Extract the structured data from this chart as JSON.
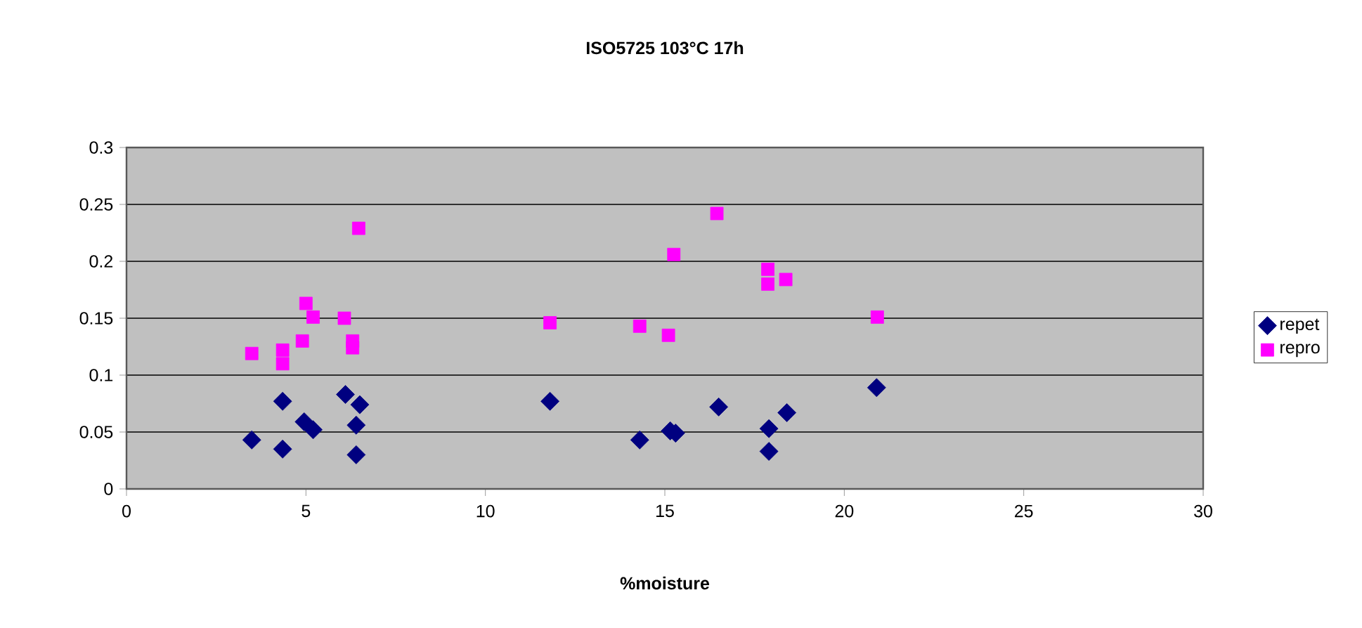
{
  "chart_data": {
    "type": "scatter",
    "title": "ISO5725 103°C 17h",
    "xlabel": "%moisture",
    "xlim": [
      0,
      30
    ],
    "xticks": [
      0,
      5,
      10,
      15,
      20,
      25,
      30
    ],
    "ylim": [
      0,
      0.3
    ],
    "yticks": [
      0,
      0.05,
      0.1,
      0.15,
      0.2,
      0.25,
      0.3
    ],
    "grid": "y",
    "legend": "right",
    "series": [
      {
        "name": "repet",
        "color": "#000080",
        "marker": "diamond",
        "x": [
          3.49,
          4.35,
          4.35,
          4.95,
          5.2,
          6.1,
          6.5,
          6.4,
          6.4,
          11.8,
          14.3,
          15.15,
          15.3,
          16.5,
          17.9,
          17.9,
          18.4,
          20.9
        ],
        "values": [
          0.043,
          0.077,
          0.035,
          0.059,
          0.052,
          0.083,
          0.074,
          0.056,
          0.03,
          0.077,
          0.043,
          0.051,
          0.049,
          0.072,
          0.053,
          0.033,
          0.067,
          0.089
        ]
      },
      {
        "name": "repro",
        "color": "#ff00ff",
        "marker": "square",
        "x": [
          3.49,
          4.35,
          4.35,
          4.9,
          5.0,
          5.2,
          6.07,
          6.3,
          6.3,
          6.47,
          11.8,
          14.3,
          15.1,
          15.25,
          16.45,
          17.87,
          17.87,
          18.37,
          20.92
        ],
        "values": [
          0.119,
          0.122,
          0.11,
          0.13,
          0.163,
          0.151,
          0.15,
          0.13,
          0.124,
          0.229,
          0.146,
          0.143,
          0.135,
          0.206,
          0.242,
          0.193,
          0.18,
          0.184,
          0.151
        ]
      }
    ]
  }
}
